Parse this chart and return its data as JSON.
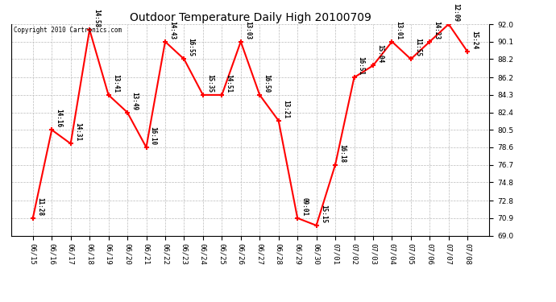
{
  "title": "Outdoor Temperature Daily High 20100709",
  "copyright": "Copyright 2010 Cartronics.com",
  "dates": [
    "06/15",
    "06/16",
    "06/17",
    "06/18",
    "06/19",
    "06/20",
    "06/21",
    "06/22",
    "06/23",
    "06/24",
    "06/25",
    "06/26",
    "06/27",
    "06/28",
    "06/29",
    "06/30",
    "07/01",
    "07/02",
    "07/03",
    "07/04",
    "07/05",
    "07/06",
    "07/07",
    "07/08"
  ],
  "values": [
    70.9,
    80.5,
    79.0,
    91.4,
    84.3,
    82.4,
    78.6,
    90.1,
    88.2,
    84.3,
    84.3,
    90.1,
    84.3,
    81.5,
    70.9,
    70.1,
    76.7,
    86.2,
    87.5,
    90.1,
    88.2,
    90.1,
    92.0,
    89.0
  ],
  "time_labels": [
    "11:28",
    "14:16",
    "14:31",
    "14:58",
    "13:41",
    "13:49",
    "16:10",
    "14:43",
    "16:55",
    "15:35",
    "14:51",
    "13:03",
    "16:50",
    "13:21",
    "09:01",
    "15:15",
    "16:18",
    "16:51",
    "15:04",
    "13:01",
    "11:55",
    "14:23",
    "12:09",
    "15:24"
  ],
  "ylim": [
    69.0,
    92.0
  ],
  "yticks": [
    69.0,
    70.9,
    72.8,
    74.8,
    76.7,
    78.6,
    80.5,
    82.4,
    84.3,
    86.2,
    88.2,
    90.1,
    92.0
  ],
  "line_color": "red",
  "marker_color": "red",
  "bg_color": "white",
  "grid_color": "#bbbbbb",
  "title_fontsize": 10,
  "label_fontsize": 5.5,
  "tick_fontsize": 6.5,
  "copyright_fontsize": 5.5
}
